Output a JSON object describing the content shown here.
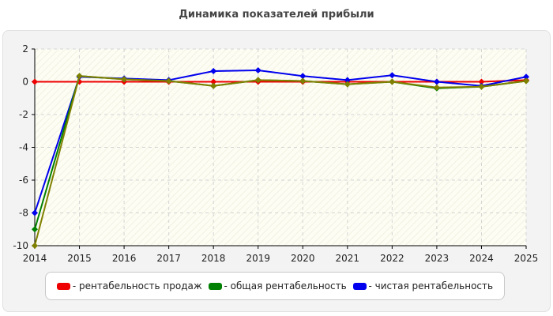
{
  "chart_data": {
    "type": "line",
    "title": "Динамика показателей прибыли",
    "x": [
      "2014",
      "2015",
      "2016",
      "2017",
      "2018",
      "2019",
      "2020",
      "2021",
      "2022",
      "2023",
      "2024",
      "2025"
    ],
    "ylim": [
      -10,
      2
    ],
    "yticks": [
      "2",
      "0",
      "-2",
      "-4",
      "-6",
      "-8",
      "-10"
    ],
    "grid": true,
    "legend_position": "bottom",
    "series": [
      {
        "name": "- рентабельность продаж",
        "color": "#ee0000",
        "values": [
          0,
          0,
          0,
          0,
          0,
          0,
          0,
          0,
          0,
          0,
          0,
          0.1
        ]
      },
      {
        "name": "- общая рентабельность",
        "color": "#008000",
        "values": [
          -9,
          0.35,
          0.15,
          0.05,
          -0.25,
          0.1,
          0.05,
          -0.15,
          0,
          -0.4,
          -0.3,
          0.05
        ]
      },
      {
        "name": "- чистая рентабельность",
        "color": "#0000ee",
        "values": [
          -8,
          0.3,
          0.2,
          0.1,
          0.65,
          0.7,
          0.35,
          0.1,
          0.4,
          0,
          -0.25,
          0.3
        ]
      }
    ],
    "extra_series": {
      "color": "#808000",
      "values": [
        -10,
        0.35,
        0.15,
        0.05,
        -0.25,
        0.1,
        0.05,
        -0.15,
        0,
        -0.35,
        -0.3,
        0.05
      ]
    }
  }
}
